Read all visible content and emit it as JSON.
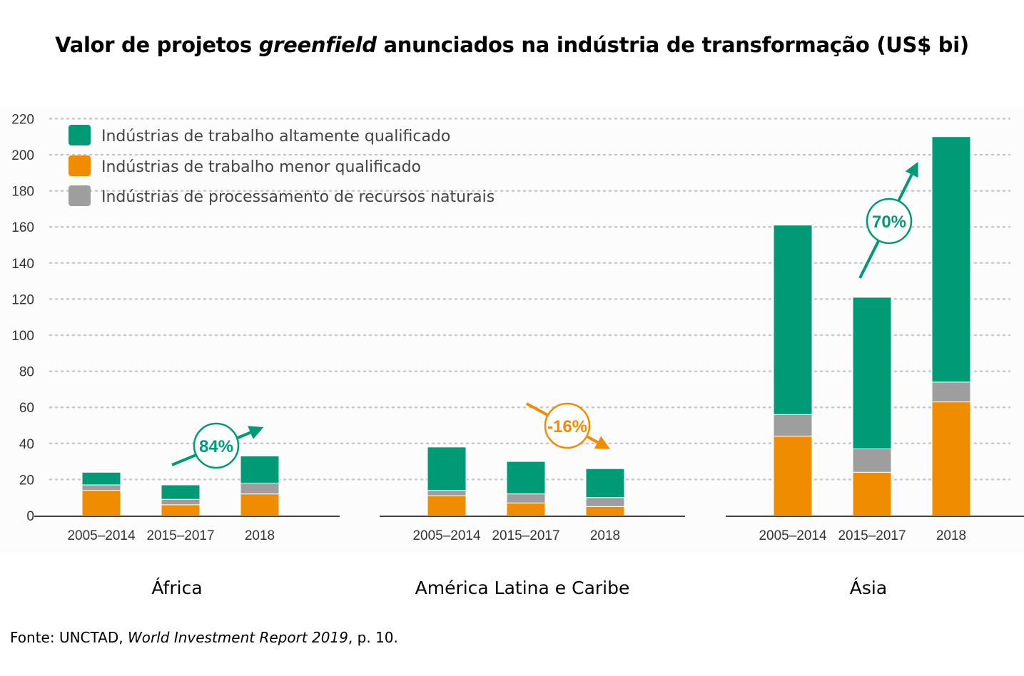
{
  "title": {
    "before": "Valor de projetos ",
    "emphasis": "greenfield",
    "after": " anunciados na indústria de transformação (US$ bi)"
  },
  "source": {
    "before": "Fonte: UNCTAD, ",
    "emphasis": "World Investment Report 2019",
    "after": ", p. 10."
  },
  "colors": {
    "high_skill": "#009a76",
    "low_skill": "#f08c00",
    "resources": "#9e9e9e",
    "grid": "#c8c8c8",
    "axis": "#444444",
    "decrease": "#f08c00"
  },
  "chart_data": {
    "type": "bar",
    "stacked": true,
    "ylim": [
      0,
      220
    ],
    "yticks": [
      0,
      20,
      40,
      60,
      80,
      100,
      120,
      140,
      160,
      180,
      200,
      220
    ],
    "grid": true,
    "legend_position": "top-left",
    "periods": [
      "2005–2014",
      "2015–2017",
      "2018"
    ],
    "series": [
      {
        "name": "Indústrias de trabalho altamente qualificado",
        "color_key": "high_skill"
      },
      {
        "name": "Indústrias de trabalho menor qualificado",
        "color_key": "low_skill"
      },
      {
        "name": "Indústrias de processamento de recursos naturais",
        "color_key": "resources"
      }
    ],
    "groups": [
      {
        "region": "África",
        "change_label": "84%",
        "change_direction": "up",
        "bars": [
          {
            "period": "2005–2014",
            "low_skill": 14,
            "resources": 3,
            "high_skill": 7
          },
          {
            "period": "2015–2017",
            "low_skill": 6,
            "resources": 3,
            "high_skill": 8
          },
          {
            "period": "2018",
            "low_skill": 12,
            "resources": 6,
            "high_skill": 15
          }
        ]
      },
      {
        "region": "América Latina e Caribe",
        "change_label": "-16%",
        "change_direction": "down",
        "bars": [
          {
            "period": "2005–2014",
            "low_skill": 11,
            "resources": 3,
            "high_skill": 24
          },
          {
            "period": "2015–2017",
            "low_skill": 7,
            "resources": 5,
            "high_skill": 18
          },
          {
            "period": "2018",
            "low_skill": 5,
            "resources": 5,
            "high_skill": 16
          }
        ]
      },
      {
        "region": "Ásia",
        "change_label": "70%",
        "change_direction": "up",
        "bars": [
          {
            "period": "2005–2014",
            "low_skill": 44,
            "resources": 12,
            "high_skill": 105
          },
          {
            "period": "2015–2017",
            "low_skill": 24,
            "resources": 13,
            "high_skill": 84
          },
          {
            "period": "2018",
            "low_skill": 63,
            "resources": 11,
            "high_skill": 136
          }
        ]
      }
    ]
  }
}
